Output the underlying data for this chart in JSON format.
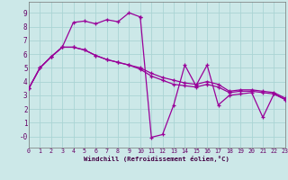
{
  "xlabel": "Windchill (Refroidissement éolien,°C)",
  "bg_color": "#cce8e8",
  "grid_color": "#aad4d4",
  "line_color": "#990099",
  "x_range": [
    0,
    23
  ],
  "y_range": [
    -0.8,
    9.8
  ],
  "yticks": [
    0,
    1,
    2,
    3,
    4,
    5,
    6,
    7,
    8,
    9
  ],
  "ytick_labels": [
    "-0",
    "1",
    "2",
    "3",
    "4",
    "5",
    "6",
    "7",
    "8",
    "9"
  ],
  "xticks": [
    0,
    1,
    2,
    3,
    4,
    5,
    6,
    7,
    8,
    9,
    10,
    11,
    12,
    13,
    14,
    15,
    16,
    17,
    18,
    19,
    20,
    21,
    22,
    23
  ],
  "series": [
    {
      "x": [
        0,
        1,
        2,
        3,
        4,
        5,
        6,
        7,
        8,
        9,
        10
      ],
      "y": [
        3.5,
        5.0,
        5.8,
        6.5,
        8.3,
        8.4,
        8.2,
        8.5,
        8.35,
        9.0,
        8.7
      ]
    },
    {
      "x": [
        0,
        1,
        2,
        3,
        4,
        5,
        6,
        7,
        8,
        9,
        10,
        11,
        12,
        13,
        14,
        15,
        16,
        17,
        18,
        19,
        20,
        21,
        22,
        23
      ],
      "y": [
        3.5,
        5.0,
        5.8,
        6.5,
        6.5,
        6.3,
        5.9,
        5.6,
        5.4,
        5.2,
        4.9,
        4.4,
        4.1,
        3.8,
        3.7,
        3.6,
        3.8,
        3.6,
        3.2,
        3.3,
        3.3,
        3.2,
        3.1,
        2.7
      ]
    },
    {
      "x": [
        0,
        1,
        2,
        3,
        4,
        5,
        6,
        7,
        8,
        9,
        10,
        11,
        12,
        13,
        14,
        15,
        16,
        17,
        18,
        19,
        20,
        21,
        22,
        23
      ],
      "y": [
        3.5,
        5.0,
        5.8,
        6.5,
        6.5,
        6.3,
        5.9,
        5.6,
        5.4,
        5.2,
        5.0,
        4.6,
        4.3,
        4.1,
        3.9,
        3.8,
        4.0,
        3.8,
        3.3,
        3.4,
        3.4,
        3.3,
        3.2,
        2.8
      ]
    },
    {
      "x": [
        10,
        11,
        12,
        13,
        14,
        15,
        16,
        17,
        18,
        19,
        20,
        21,
        22,
        23
      ],
      "y": [
        8.7,
        -0.05,
        0.15,
        2.3,
        5.2,
        3.7,
        5.2,
        2.3,
        3.0,
        3.1,
        3.2,
        1.4,
        3.1,
        2.7
      ]
    }
  ]
}
